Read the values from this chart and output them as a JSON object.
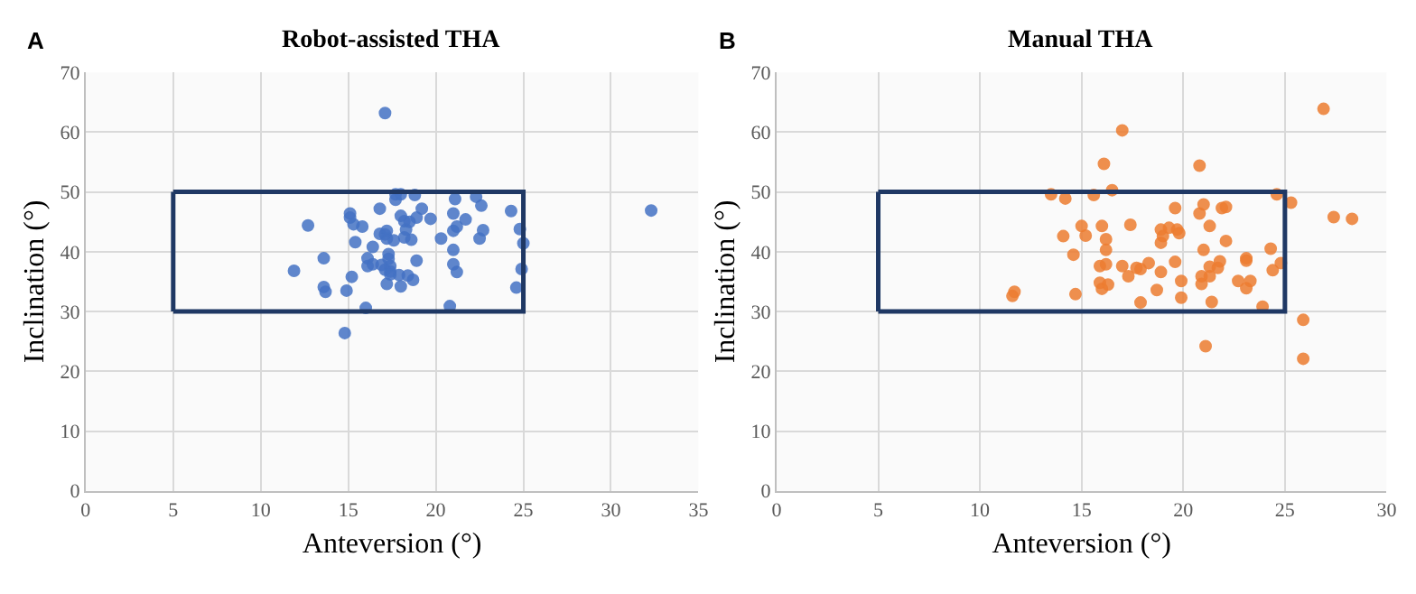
{
  "chart_data": [
    {
      "type": "scatter",
      "title": "Robot-assisted THA",
      "xlabel": "Anteversion (°)",
      "ylabel": "Inclination (°)",
      "annotations": [
        "A"
      ],
      "xlim": [
        0,
        35
      ],
      "xticks": [
        0,
        5,
        10,
        15,
        20,
        25,
        30,
        35
      ],
      "ylim": [
        0,
        70
      ],
      "yticks": [
        0,
        10,
        20,
        30,
        40,
        50,
        60,
        70
      ],
      "grid": true,
      "marker": "circle",
      "series": [
        {
          "color": "#4472c4",
          "x": [
            17.1,
            32.3,
            11.9,
            12.7,
            13.6,
            13.6,
            13.7,
            14.9,
            14.8,
            16.0,
            15.2,
            15.1,
            15.1,
            15.3,
            15.8,
            15.4,
            16.4,
            16.1,
            16.1,
            16.4,
            16.8,
            16.8,
            17.1,
            17.2,
            17.2,
            16.9,
            17.1,
            17.3,
            17.3,
            17.4,
            17.4,
            17.4,
            17.2,
            17.7,
            17.7,
            18.0,
            18.8,
            18.0,
            18.2,
            18.3,
            18.2,
            17.6,
            18.5,
            18.6,
            18.9,
            19.2,
            19.7,
            18.9,
            17.9,
            18.4,
            18.7,
            18.0,
            20.3,
            21.0,
            21.1,
            21.0,
            21.2,
            21.0,
            21.0,
            21.2,
            20.8,
            21.7,
            22.3,
            22.6,
            22.7,
            22.5,
            24.3,
            24.8,
            25.0,
            24.9,
            24.6
          ],
          "values": [
            63.2,
            46.9,
            36.8,
            44.4,
            38.9,
            34.1,
            33.3,
            33.5,
            26.4,
            30.6,
            35.8,
            46.4,
            45.7,
            44.6,
            44.2,
            41.6,
            40.8,
            38.9,
            37.6,
            37.9,
            43.0,
            47.2,
            42.9,
            43.5,
            42.2,
            37.8,
            37.0,
            39.6,
            38.8,
            37.6,
            36.7,
            36.2,
            34.6,
            48.7,
            49.6,
            49.6,
            49.5,
            46.0,
            45.1,
            43.7,
            42.4,
            41.9,
            45.0,
            42.0,
            45.7,
            47.2,
            45.5,
            38.5,
            36.1,
            36.0,
            35.3,
            34.2,
            42.2,
            46.4,
            48.8,
            43.5,
            44.2,
            40.3,
            37.9,
            36.6,
            30.9,
            45.4,
            49.2,
            47.7,
            43.6,
            42.2,
            46.8,
            43.8,
            41.4,
            37.1,
            34.0
          ]
        },
        {
          "type": "line",
          "color": "#1f3864",
          "marker": "none",
          "x": [
            5,
            25,
            25,
            5
          ],
          "values": [
            30,
            30,
            50,
            50
          ]
        },
        {
          "type": "line",
          "color": "#1f3864",
          "marker": "none",
          "x": [
            5,
            5
          ],
          "values": [
            50,
            30
          ]
        }
      ]
    },
    {
      "type": "scatter",
      "title": "Manual THA",
      "xlabel": "Anteversion (°)",
      "ylabel": "Inclination (°)",
      "annotations": [
        "B"
      ],
      "xlim": [
        0,
        30
      ],
      "xticks": [
        0,
        5,
        10,
        15,
        20,
        25,
        30
      ],
      "ylim": [
        0,
        70
      ],
      "yticks": [
        0,
        10,
        20,
        30,
        40,
        50,
        60,
        70
      ],
      "grid": true,
      "marker": "circle",
      "series": [
        {
          "color": "#ed7d31",
          "x": [
            26.9,
            17.0,
            16.1,
            20.8,
            16.5,
            13.5,
            14.2,
            15.6,
            24.6,
            25.3,
            27.4,
            28.3,
            19.6,
            21.0,
            21.9,
            22.1,
            20.8,
            21.3,
            15.0,
            16.0,
            17.4,
            14.1,
            15.2,
            16.2,
            16.2,
            14.6,
            18.9,
            19.3,
            19.7,
            19.8,
            19.0,
            18.9,
            22.1,
            21.0,
            24.3,
            15.9,
            16.2,
            17.0,
            17.7,
            17.9,
            18.3,
            19.6,
            18.9,
            17.3,
            19.9,
            21.3,
            21.7,
            21.8,
            20.9,
            21.3,
            20.9,
            23.1,
            23.1,
            24.4,
            24.8,
            22.7,
            23.3,
            23.1,
            15.9,
            16.0,
            16.3,
            14.7,
            11.7,
            11.6,
            18.7,
            19.9,
            17.9,
            21.4,
            23.9,
            25.9,
            25.9,
            21.1
          ],
          "values": [
            63.9,
            60.3,
            54.7,
            54.4,
            50.3,
            49.6,
            48.9,
            49.5,
            49.6,
            48.2,
            45.8,
            45.5,
            47.3,
            47.9,
            47.3,
            47.5,
            46.4,
            44.3,
            44.3,
            44.3,
            44.5,
            42.6,
            42.7,
            42.1,
            40.3,
            39.5,
            43.7,
            44.0,
            43.7,
            43.1,
            42.6,
            41.5,
            41.8,
            40.3,
            40.5,
            37.6,
            37.9,
            37.6,
            37.3,
            37.1,
            38.1,
            38.3,
            36.6,
            35.9,
            35.1,
            37.5,
            37.3,
            38.4,
            35.9,
            35.9,
            34.6,
            38.9,
            38.5,
            36.9,
            38.1,
            35.1,
            35.1,
            33.9,
            34.8,
            33.8,
            34.5,
            32.9,
            33.3,
            32.6,
            33.6,
            32.3,
            31.5,
            31.6,
            30.8,
            28.6,
            22.1,
            24.2
          ]
        },
        {
          "type": "line",
          "color": "#1f3864",
          "marker": "none",
          "x": [
            5,
            25,
            25,
            5
          ],
          "values": [
            30,
            30,
            50,
            50
          ]
        },
        {
          "type": "line",
          "color": "#1f3864",
          "marker": "none",
          "x": [
            5,
            5
          ],
          "values": [
            50,
            30
          ]
        }
      ]
    }
  ]
}
